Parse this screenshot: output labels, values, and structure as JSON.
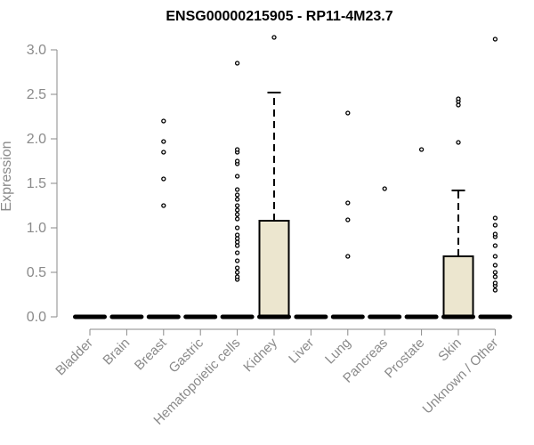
{
  "chart_data": {
    "type": "box",
    "title": "ENSG00000215905 - RP11-4M23.7",
    "xlabel": "",
    "ylabel": "Expression",
    "ylim": [
      0,
      3.0
    ],
    "yticks": [
      "0.0",
      "0.5",
      "1.0",
      "1.5",
      "2.0",
      "2.5",
      "3.0"
    ],
    "box_fill": "#ece6cf",
    "categories": [
      "Bladder",
      "Brain",
      "Breast",
      "Gastric",
      "Hematopoietic cells",
      "Kidney",
      "Liver",
      "Lung",
      "Pancreas",
      "Prostate",
      "Skin",
      "Unknown / Other"
    ],
    "boxes": [
      {
        "category": "Bladder",
        "q1": 0,
        "median": 0,
        "q3": 0,
        "whisker_high": 0,
        "outliers": []
      },
      {
        "category": "Brain",
        "q1": 0,
        "median": 0,
        "q3": 0,
        "whisker_high": 0,
        "outliers": []
      },
      {
        "category": "Breast",
        "q1": 0,
        "median": 0,
        "q3": 0,
        "whisker_high": 0,
        "outliers": [
          1.25,
          1.55,
          1.85,
          1.97,
          2.2
        ]
      },
      {
        "category": "Gastric",
        "q1": 0,
        "median": 0,
        "q3": 0,
        "whisker_high": 0,
        "outliers": []
      },
      {
        "category": "Hematopoietic cells",
        "q1": 0,
        "median": 0,
        "q3": 0,
        "whisker_high": 0,
        "outliers": [
          0.42,
          0.45,
          0.5,
          0.55,
          0.63,
          0.72,
          0.8,
          0.84,
          0.88,
          0.92,
          1.0,
          1.1,
          1.15,
          1.2,
          1.25,
          1.32,
          1.37,
          1.43,
          1.58,
          1.72,
          1.75,
          1.85,
          1.88,
          2.85
        ]
      },
      {
        "category": "Kidney",
        "q1": 0,
        "median": 0,
        "q3": 1.08,
        "whisker_high": 2.52,
        "outliers": [
          3.14
        ]
      },
      {
        "category": "Liver",
        "q1": 0,
        "median": 0,
        "q3": 0,
        "whisker_high": 0,
        "outliers": []
      },
      {
        "category": "Lung",
        "q1": 0,
        "median": 0,
        "q3": 0,
        "whisker_high": 0,
        "outliers": [
          0.68,
          1.09,
          1.28,
          2.29
        ]
      },
      {
        "category": "Pancreas",
        "q1": 0,
        "median": 0,
        "q3": 0,
        "whisker_high": 0,
        "outliers": [
          1.44
        ]
      },
      {
        "category": "Prostate",
        "q1": 0,
        "median": 0,
        "q3": 0,
        "whisker_high": 0,
        "outliers": [
          1.88
        ]
      },
      {
        "category": "Skin",
        "q1": 0,
        "median": 0,
        "q3": 0.68,
        "whisker_high": 1.42,
        "outliers": [
          1.96,
          2.38,
          2.42,
          2.45
        ]
      },
      {
        "category": "Unknown / Other",
        "q1": 0,
        "median": 0,
        "q3": 0,
        "whisker_high": 0,
        "outliers": [
          0.3,
          0.35,
          0.38,
          0.45,
          0.5,
          0.58,
          0.68,
          0.8,
          0.9,
          0.93,
          1.03,
          1.11,
          3.12
        ]
      }
    ]
  }
}
